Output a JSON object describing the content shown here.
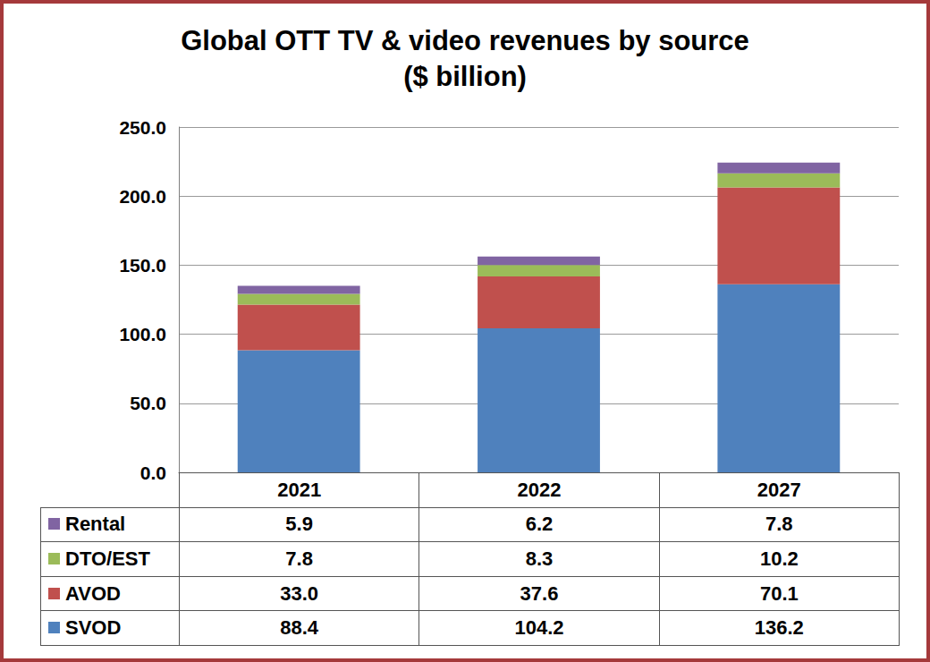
{
  "chart_data": {
    "type": "bar",
    "title": "Global OTT TV & video revenues by source\n($ billion)",
    "categories": [
      "2021",
      "2022",
      "2027"
    ],
    "series": [
      {
        "name": "SVOD",
        "color": "#4f81bd",
        "values": [
          88.4,
          104.2,
          136.2
        ]
      },
      {
        "name": "AVOD",
        "color": "#c0504d",
        "values": [
          33.0,
          37.6,
          70.1
        ],
        "value_labels": [
          "33.0",
          "37.6",
          "70.1"
        ]
      },
      {
        "name": "DTO/EST",
        "color": "#9bbb59",
        "values": [
          7.8,
          8.3,
          10.2
        ]
      },
      {
        "name": "Rental",
        "color": "#8064a2",
        "values": [
          5.9,
          6.2,
          7.8
        ]
      }
    ],
    "stacked": true,
    "ylim": [
      0,
      250
    ],
    "yticks": [
      {
        "value": 0,
        "label": "0.0"
      },
      {
        "value": 50,
        "label": "50.0"
      },
      {
        "value": 100,
        "label": "100.0"
      },
      {
        "value": 150,
        "label": "150.0"
      },
      {
        "value": 200,
        "label": "200.0"
      },
      {
        "value": 250,
        "label": "250.0"
      }
    ],
    "grid": true
  }
}
